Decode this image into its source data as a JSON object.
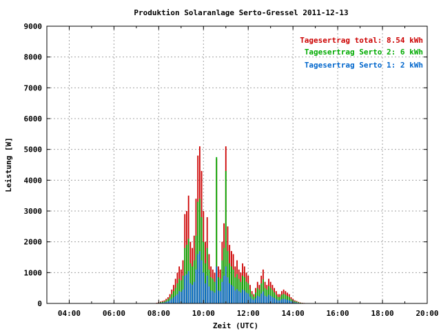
{
  "chart_data": {
    "type": "bar",
    "title": "Produktion Solaranlage Serto-Gressel 2011-12-13",
    "xlabel": "Zeit (UTC)",
    "ylabel": "Leistung [W]",
    "x_tick_labels": [
      "04:00",
      "06:00",
      "08:00",
      "10:00",
      "12:00",
      "14:00",
      "16:00",
      "18:00",
      "20:00"
    ],
    "x_tick_hours": [
      4,
      6,
      8,
      10,
      12,
      14,
      16,
      18,
      20
    ],
    "y_tick_labels": [
      "0",
      "1000",
      "2000",
      "3000",
      "4000",
      "5000",
      "6000",
      "7000",
      "8000",
      "9000"
    ],
    "xlim_hours": [
      3,
      20
    ],
    "ylim": [
      0,
      9000
    ],
    "grid": true,
    "stacked": true,
    "legend_position": "top-right",
    "legend": [
      {
        "label": "Tagesertrag total: 8.54 kWh",
        "color": "#cc0000"
      },
      {
        "label": "Tagesertrag Serto 2: 6 kWh",
        "color": "#00aa00"
      },
      {
        "label": "Tagesertrag Serto 1: 2 kWh",
        "color": "#0066cc"
      }
    ],
    "series_colors": {
      "serto1": "#0066cc",
      "serto2": "#00aa00",
      "total": "#cc0000"
    },
    "x_time": [
      "07:55",
      "08:00",
      "08:05",
      "08:10",
      "08:15",
      "08:20",
      "08:25",
      "08:30",
      "08:35",
      "08:40",
      "08:45",
      "08:50",
      "08:55",
      "09:00",
      "09:05",
      "09:10",
      "09:15",
      "09:20",
      "09:25",
      "09:30",
      "09:35",
      "09:40",
      "09:45",
      "09:50",
      "09:55",
      "10:00",
      "10:05",
      "10:10",
      "10:15",
      "10:20",
      "10:25",
      "10:30",
      "10:35",
      "10:40",
      "10:45",
      "10:50",
      "10:55",
      "11:00",
      "11:05",
      "11:10",
      "11:15",
      "11:20",
      "11:25",
      "11:30",
      "11:35",
      "11:40",
      "11:45",
      "11:50",
      "11:55",
      "12:00",
      "12:05",
      "12:10",
      "12:15",
      "12:20",
      "12:25",
      "12:30",
      "12:35",
      "12:40",
      "12:45",
      "12:50",
      "12:55",
      "13:00",
      "13:05",
      "13:10",
      "13:15",
      "13:20",
      "13:25",
      "13:30",
      "13:35",
      "13:40",
      "13:45",
      "13:50",
      "13:55",
      "14:00",
      "14:05",
      "14:10",
      "14:15",
      "14:20",
      "14:25",
      "14:30",
      "14:35",
      "14:40",
      "14:45",
      "14:50",
      "14:55",
      "15:00",
      "15:05"
    ],
    "total": [
      20,
      40,
      60,
      80,
      100,
      150,
      200,
      300,
      450,
      600,
      800,
      1000,
      1200,
      1100,
      1400,
      2900,
      3000,
      3500,
      2000,
      1800,
      2200,
      3400,
      4800,
      5100,
      4300,
      3000,
      2000,
      2800,
      1600,
      1200,
      1100,
      1000,
      4700,
      1200,
      1100,
      2000,
      2600,
      5100,
      2500,
      1900,
      1700,
      1600,
      1200,
      1400,
      1100,
      1000,
      1300,
      1200,
      1000,
      900,
      600,
      400,
      300,
      500,
      700,
      600,
      900,
      1100,
      700,
      600,
      800,
      700,
      600,
      500,
      400,
      300,
      300,
      400,
      450,
      400,
      350,
      300,
      200,
      150,
      100,
      80,
      50,
      30,
      20,
      15,
      10,
      8,
      5,
      3,
      2,
      1,
      0
    ],
    "serto2": [
      10,
      20,
      40,
      50,
      60,
      100,
      140,
      200,
      300,
      400,
      500,
      650,
      800,
      750,
      900,
      1800,
      1900,
      2100,
      1300,
      1200,
      1400,
      2200,
      3300,
      3400,
      2800,
      2000,
      1300,
      1800,
      1100,
      850,
      800,
      700,
      4750,
      850,
      800,
      1400,
      1800,
      4300,
      1700,
      1300,
      1200,
      1100,
      850,
      950,
      800,
      700,
      900,
      850,
      700,
      650,
      450,
      300,
      220,
      350,
      500,
      450,
      650,
      780,
      500,
      450,
      560,
      500,
      430,
      360,
      280,
      210,
      210,
      280,
      310,
      280,
      240,
      210,
      140,
      100,
      70,
      55,
      35,
      20,
      14,
      10,
      7,
      5,
      3,
      2,
      1,
      0,
      0
    ],
    "serto1": [
      5,
      10,
      20,
      25,
      30,
      50,
      70,
      100,
      150,
      200,
      250,
      300,
      400,
      380,
      450,
      900,
      950,
      1050,
      650,
      600,
      700,
      1100,
      1600,
      1700,
      1400,
      1000,
      650,
      900,
      550,
      420,
      400,
      350,
      1200,
      420,
      400,
      700,
      900,
      1200,
      850,
      650,
      600,
      550,
      420,
      470,
      400,
      350,
      450,
      420,
      350,
      320,
      220,
      150,
      110,
      170,
      250,
      220,
      320,
      390,
      250,
      220,
      280,
      250,
      210,
      180,
      140,
      100,
      100,
      140,
      150,
      140,
      120,
      100,
      70,
      50,
      35,
      27,
      17,
      10,
      7,
      5,
      3,
      2,
      1,
      1,
      0,
      0,
      0
    ]
  }
}
